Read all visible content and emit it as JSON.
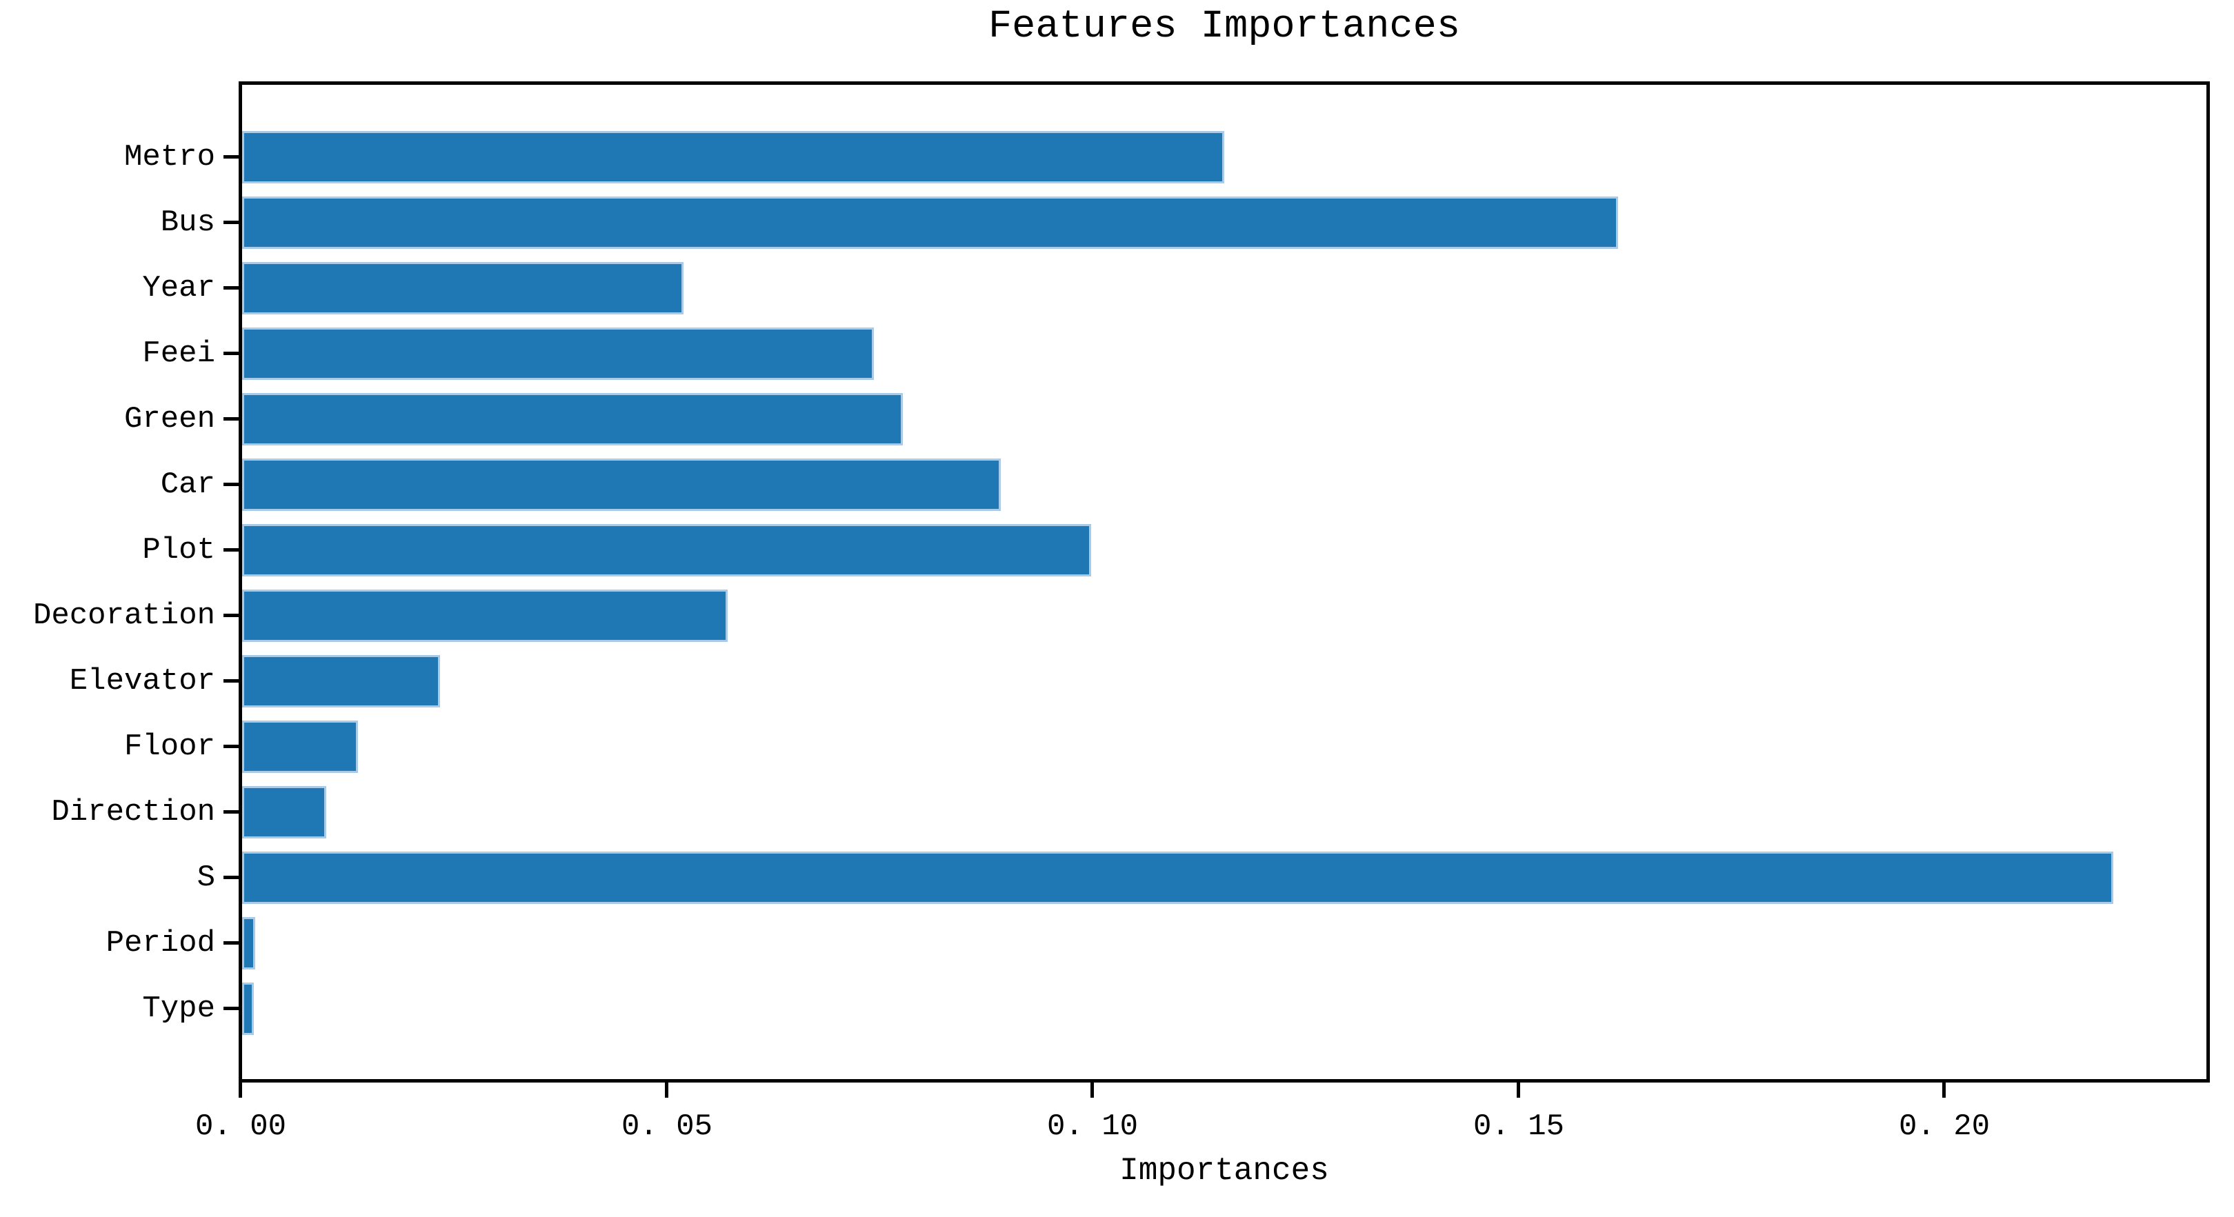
{
  "chart_data": {
    "type": "bar",
    "orientation": "horizontal",
    "title": "Features Importances",
    "xlabel": "Importances",
    "ylabel": "",
    "categories": [
      "Metro",
      "Bus",
      "Year",
      "Feei",
      "Green",
      "Car",
      "Plot",
      "Decoration",
      "Elevator",
      "Floor",
      "Direction",
      "S",
      "Period",
      "Type"
    ],
    "values": [
      0.1155,
      0.1617,
      0.052,
      0.0743,
      0.0777,
      0.0892,
      0.0998,
      0.0572,
      0.0234,
      0.0138,
      0.01,
      0.2198,
      0.0017,
      0.0015
    ],
    "xlim": [
      0,
      0.231
    ],
    "xticks": {
      "values": [
        0.0,
        0.05,
        0.1,
        0.15,
        0.2
      ],
      "labels": [
        "0. 00",
        "0. 05",
        "0. 10",
        "0. 15",
        "0. 20"
      ]
    },
    "bar_color": "#1f77b4",
    "bar_edge_color": "#aacbe8",
    "axis_color": "#000000",
    "grid": "off",
    "legend": "none"
  }
}
